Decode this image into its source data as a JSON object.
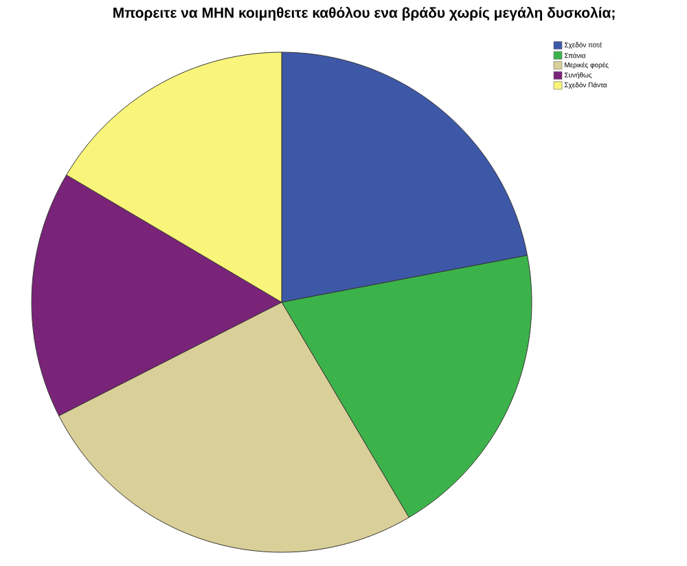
{
  "chart_data": {
    "type": "pie",
    "title": "Μπορειτε να ΜΗΝ κοιμηθειτε καθόλου ενα βράδυ χωρίς μεγάλη δυσκολία;",
    "categories": [
      "Σχεδόν ποτέ",
      "Σπάνια",
      "Μερικές φορές",
      "Συνήθως",
      "Σχεδόν Πάντα"
    ],
    "values": [
      22,
      19.5,
      26,
      16,
      16.5
    ],
    "colors": [
      "#3e58a8",
      "#3cb34a",
      "#d9cf98",
      "#7a2479",
      "#f8f57a"
    ],
    "legend": "top right"
  }
}
